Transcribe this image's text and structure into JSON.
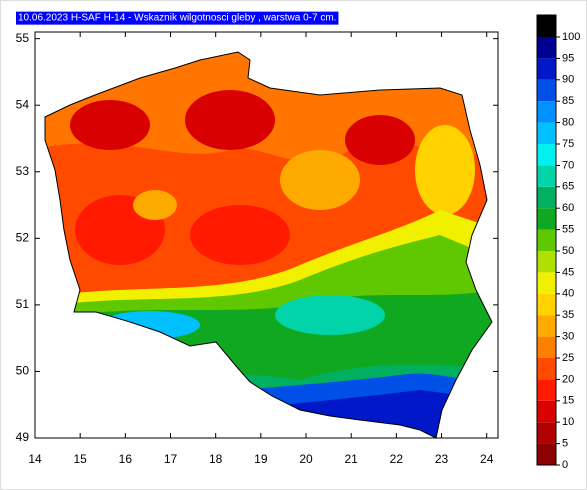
{
  "title": "10.06.2023 H-SAF H-14 - Wskaznik wilgotnosci gleby , warstwa 0-7 cm.",
  "map": {
    "xlim": [
      14,
      24.25
    ],
    "ylim": [
      49,
      55.1
    ],
    "xticks": [
      14,
      15,
      16,
      17,
      18,
      19,
      20,
      21,
      22,
      23,
      24
    ],
    "yticks": [
      49,
      50,
      51,
      52,
      53,
      54,
      55
    ]
  },
  "colorbar": {
    "levels": [
      0,
      5,
      10,
      15,
      20,
      25,
      30,
      35,
      40,
      45,
      50,
      55,
      60,
      65,
      70,
      75,
      80,
      85,
      90,
      95,
      100
    ],
    "colors": [
      "#8b0000",
      "#b00000",
      "#d80000",
      "#ff1a00",
      "#ff4a00",
      "#ff7f00",
      "#ffaa00",
      "#ffd200",
      "#f0f000",
      "#b0e000",
      "#60c800",
      "#10a820",
      "#00b060",
      "#00d4a8",
      "#00f0f0",
      "#00c0ff",
      "#0090ff",
      "#0050e8",
      "#0018c8",
      "#000090",
      "#000000"
    ]
  }
}
